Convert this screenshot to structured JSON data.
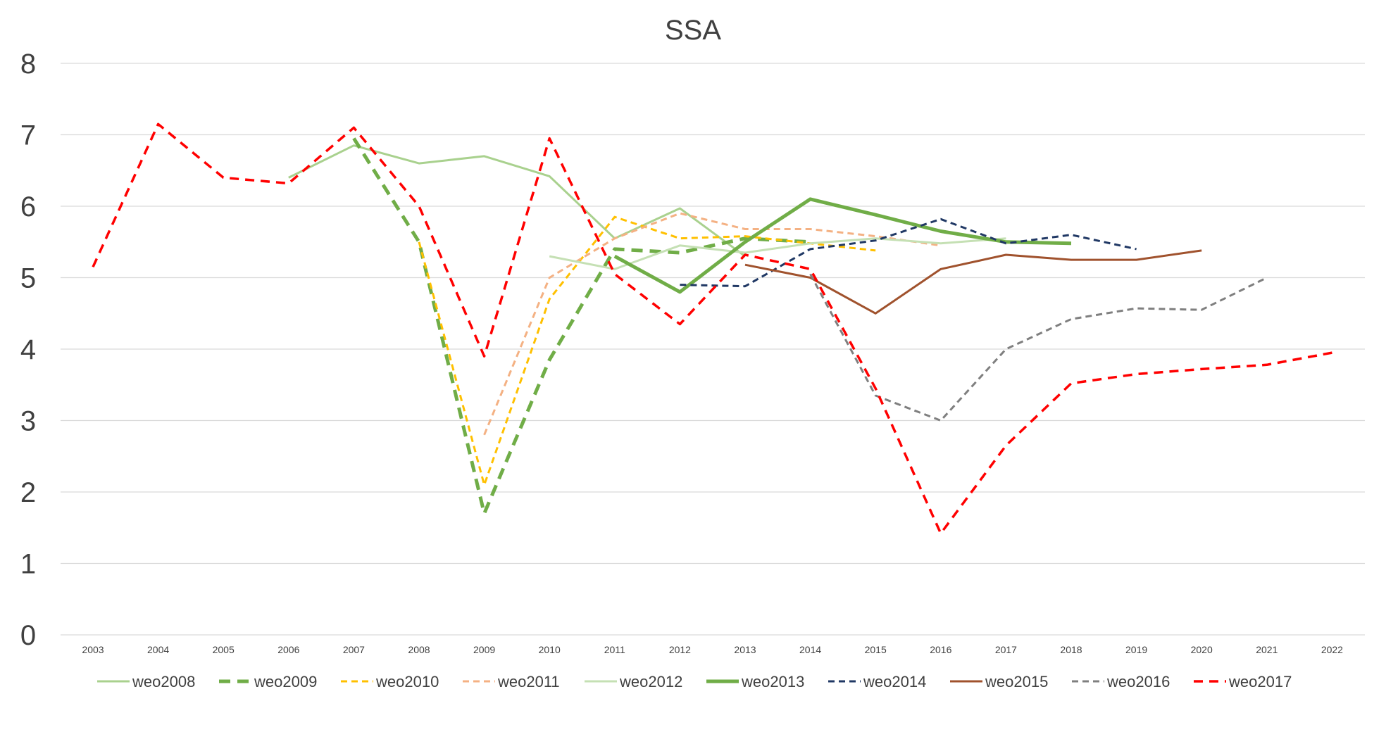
{
  "chart_data": {
    "type": "line",
    "title": "SSA",
    "xlabel": "",
    "ylabel": "",
    "x": [
      2003,
      2004,
      2005,
      2006,
      2007,
      2008,
      2009,
      2010,
      2011,
      2012,
      2013,
      2014,
      2015,
      2016,
      2017,
      2018,
      2019,
      2020,
      2021,
      2022
    ],
    "x_tick_labels": [
      "2003",
      "2004",
      "2005",
      "2006",
      "2007",
      "2008",
      "2009",
      "2010",
      "2011",
      "2012",
      "2013",
      "2014",
      "2015",
      "2016",
      "2017",
      "2018",
      "2019",
      "2020",
      "2021",
      "2022"
    ],
    "y_tick_labels": [
      "0",
      "1",
      "2",
      "3",
      "4",
      "5",
      "6",
      "7",
      "8"
    ],
    "ylim": [
      0,
      8
    ],
    "grid": "horizontal",
    "legend_position": "bottom",
    "series": [
      {
        "name": "weo2008",
        "color": "#a9d18e",
        "style": "solid",
        "width": "thin",
        "points": [
          [
            2006,
            6.4
          ],
          [
            2007,
            6.85
          ],
          [
            2008,
            6.6
          ],
          [
            2009,
            6.7
          ],
          [
            2010,
            6.42
          ],
          [
            2011,
            5.55
          ],
          [
            2012,
            5.97
          ],
          [
            2013,
            5.3
          ]
        ]
      },
      {
        "name": "weo2009",
        "color": "#70ad47",
        "style": "dashed",
        "width": "thick",
        "points": [
          [
            2007,
            6.95
          ],
          [
            2008,
            5.5
          ],
          [
            2009,
            1.7
          ],
          [
            2010,
            3.85
          ],
          [
            2011,
            5.4
          ],
          [
            2012,
            5.35
          ],
          [
            2013,
            5.55
          ],
          [
            2014,
            5.5
          ]
        ]
      },
      {
        "name": "weo2010",
        "color": "#ffc000",
        "style": "dashed",
        "width": "thin",
        "points": [
          [
            2008,
            5.5
          ],
          [
            2009,
            2.1
          ],
          [
            2010,
            4.7
          ],
          [
            2011,
            5.85
          ],
          [
            2012,
            5.55
          ],
          [
            2013,
            5.58
          ],
          [
            2014,
            5.48
          ],
          [
            2015,
            5.38
          ]
        ]
      },
      {
        "name": "weo2011",
        "color": "#f4b183",
        "style": "dashed",
        "width": "thin",
        "points": [
          [
            2009,
            2.8
          ],
          [
            2010,
            5.0
          ],
          [
            2011,
            5.55
          ],
          [
            2012,
            5.9
          ],
          [
            2013,
            5.68
          ],
          [
            2014,
            5.68
          ],
          [
            2015,
            5.58
          ],
          [
            2016,
            5.45
          ]
        ]
      },
      {
        "name": "weo2012",
        "color": "#c5e0b4",
        "style": "solid",
        "width": "thin",
        "points": [
          [
            2010,
            5.3
          ],
          [
            2011,
            5.12
          ],
          [
            2012,
            5.45
          ],
          [
            2013,
            5.35
          ],
          [
            2014,
            5.48
          ],
          [
            2015,
            5.55
          ],
          [
            2016,
            5.48
          ],
          [
            2017,
            5.55
          ]
        ]
      },
      {
        "name": "weo2013",
        "color": "#70ad47",
        "style": "solid",
        "width": "thick",
        "points": [
          [
            2011,
            5.3
          ],
          [
            2012,
            4.8
          ],
          [
            2013,
            5.5
          ],
          [
            2014,
            6.1
          ],
          [
            2015,
            5.88
          ],
          [
            2016,
            5.65
          ],
          [
            2017,
            5.5
          ],
          [
            2018,
            5.48
          ]
        ]
      },
      {
        "name": "weo2014",
        "color": "#203864",
        "style": "dashed",
        "width": "thin",
        "points": [
          [
            2012,
            4.9
          ],
          [
            2013,
            4.88
          ],
          [
            2014,
            5.4
          ],
          [
            2015,
            5.52
          ],
          [
            2016,
            5.82
          ],
          [
            2017,
            5.48
          ],
          [
            2018,
            5.6
          ],
          [
            2019,
            5.4
          ]
        ]
      },
      {
        "name": "weo2015",
        "color": "#a0522d",
        "style": "solid",
        "width": "thin",
        "points": [
          [
            2013,
            5.18
          ],
          [
            2014,
            5.0
          ],
          [
            2015,
            4.5
          ],
          [
            2016,
            5.12
          ],
          [
            2017,
            5.32
          ],
          [
            2018,
            5.25
          ],
          [
            2019,
            5.25
          ],
          [
            2020,
            5.38
          ]
        ]
      },
      {
        "name": "weo2016",
        "color": "#7f7f7f",
        "style": "dashed",
        "width": "thin",
        "points": [
          [
            2014,
            5.05
          ],
          [
            2015,
            3.35
          ],
          [
            2016,
            3.0
          ],
          [
            2017,
            4.0
          ],
          [
            2018,
            4.42
          ],
          [
            2019,
            4.57
          ],
          [
            2020,
            4.55
          ],
          [
            2021,
            5.0
          ]
        ]
      },
      {
        "name": "weo2017",
        "color": "#ff0000",
        "style": "dashed",
        "width": "medium",
        "points": [
          [
            2003,
            5.15
          ],
          [
            2004,
            7.15
          ],
          [
            2005,
            6.4
          ],
          [
            2006,
            6.32
          ],
          [
            2007,
            7.1
          ],
          [
            2008,
            6.0
          ],
          [
            2009,
            3.9
          ],
          [
            2010,
            6.95
          ],
          [
            2011,
            5.05
          ],
          [
            2012,
            4.35
          ],
          [
            2013,
            5.32
          ],
          [
            2014,
            5.12
          ],
          [
            2015,
            3.45
          ],
          [
            2016,
            1.42
          ],
          [
            2017,
            2.65
          ],
          [
            2018,
            3.52
          ],
          [
            2019,
            3.65
          ],
          [
            2020,
            3.72
          ],
          [
            2021,
            3.78
          ],
          [
            2022,
            3.95
          ]
        ]
      }
    ]
  }
}
